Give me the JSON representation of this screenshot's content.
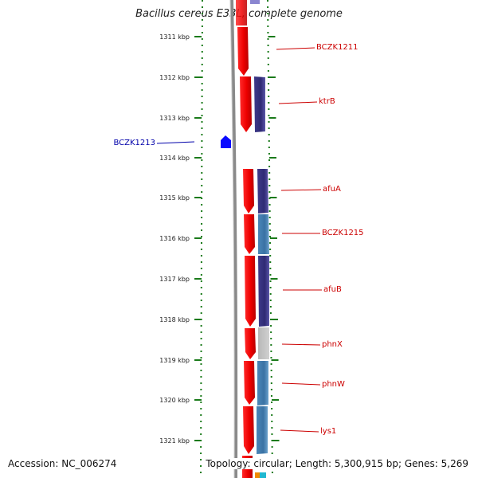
{
  "title": "Bacillus cereus E33L, complete genome",
  "accession_text": "Accession: NC_006274",
  "topology_text": "Topology: circular; Length: 5,300,915 bp; Genes: 5,269",
  "scale": {
    "ticks": [
      "1311 kbp",
      "1312 kbp",
      "1313 kbp",
      "1314 kbp",
      "1315 kbp",
      "1316 kbp",
      "1317 kbp",
      "1318 kbp",
      "1319 kbp",
      "1320 kbp",
      "1321 kbp"
    ]
  },
  "genes": [
    {
      "name": "BCZK1211",
      "color": "#cc0000"
    },
    {
      "name": "ktrB",
      "color": "#cc0000"
    },
    {
      "name": "BCZK1213",
      "color": "#0000aa"
    },
    {
      "name": "afuA",
      "color": "#cc0000"
    },
    {
      "name": "BCZK1215",
      "color": "#cc0000"
    },
    {
      "name": "afuB",
      "color": "#cc0000"
    },
    {
      "name": "phnX",
      "color": "#cc0000"
    },
    {
      "name": "phnW",
      "color": "#cc0000"
    },
    {
      "name": "lys1",
      "color": "#cc0000"
    }
  ],
  "colors": {
    "forward_gene": "#ee1111",
    "reverse_gene": "#0000ee",
    "backbone": "#888888",
    "tick": "#1a7a1a"
  }
}
